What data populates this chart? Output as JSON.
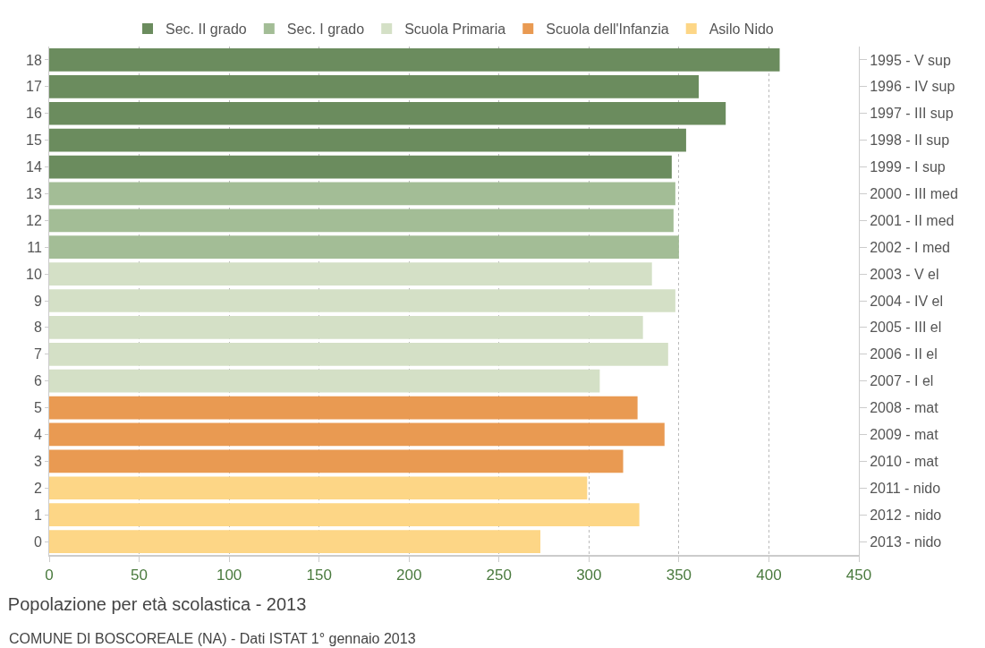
{
  "chart_data": {
    "type": "bar",
    "orientation": "horizontal",
    "title": "Popolazione per età scolastica - 2013",
    "annotations": [
      "COMUNE DI BOSCOREALE (NA) - Dati ISTAT 1° gennaio 2013"
    ],
    "categories": [
      "18",
      "17",
      "16",
      "15",
      "14",
      "13",
      "12",
      "11",
      "10",
      "9",
      "8",
      "7",
      "6",
      "5",
      "4",
      "3",
      "2",
      "1",
      "0"
    ],
    "y2_categories": [
      "1995 - V sup",
      "1996 - IV sup",
      "1997 - III sup",
      "1998 - II sup",
      "1999 - I sup",
      "2000 - III med",
      "2001 - II med",
      "2002 - I med",
      "2003 - V el",
      "2004 - IV el",
      "2005 - III el",
      "2006 - II el",
      "2007 - I el",
      "2008 - mat",
      "2009 - mat",
      "2010 - mat",
      "2011 - nido",
      "2012 - nido",
      "2013 - nido"
    ],
    "series": [
      {
        "name": "Sec. II grado",
        "color": "#6b8c5e",
        "values": [
          406,
          361,
          376,
          354,
          346,
          null,
          null,
          null,
          null,
          null,
          null,
          null,
          null,
          null,
          null,
          null,
          null,
          null,
          null
        ]
      },
      {
        "name": "Sec. I grado",
        "color": "#a3bd96",
        "values": [
          null,
          null,
          null,
          null,
          null,
          348,
          347,
          350,
          null,
          null,
          null,
          null,
          null,
          null,
          null,
          null,
          null,
          null,
          null
        ]
      },
      {
        "name": "Scuola Primaria",
        "color": "#d4e0c6",
        "values": [
          null,
          null,
          null,
          null,
          null,
          null,
          null,
          null,
          335,
          348,
          330,
          344,
          306,
          null,
          null,
          null,
          null,
          null,
          null
        ]
      },
      {
        "name": "Scuola dell'Infanzia",
        "color": "#e99a52",
        "values": [
          null,
          null,
          null,
          null,
          null,
          null,
          null,
          null,
          null,
          null,
          null,
          null,
          null,
          327,
          342,
          319,
          null,
          null,
          null
        ]
      },
      {
        "name": "Asilo Nido",
        "color": "#fdd686",
        "values": [
          null,
          null,
          null,
          null,
          null,
          null,
          null,
          null,
          null,
          null,
          null,
          null,
          null,
          null,
          null,
          null,
          299,
          328,
          273
        ]
      }
    ],
    "xlim": [
      0,
      450
    ],
    "xticks": [
      0,
      50,
      100,
      150,
      200,
      250,
      300,
      350,
      400,
      450
    ],
    "grid": "x",
    "legend": "top"
  }
}
